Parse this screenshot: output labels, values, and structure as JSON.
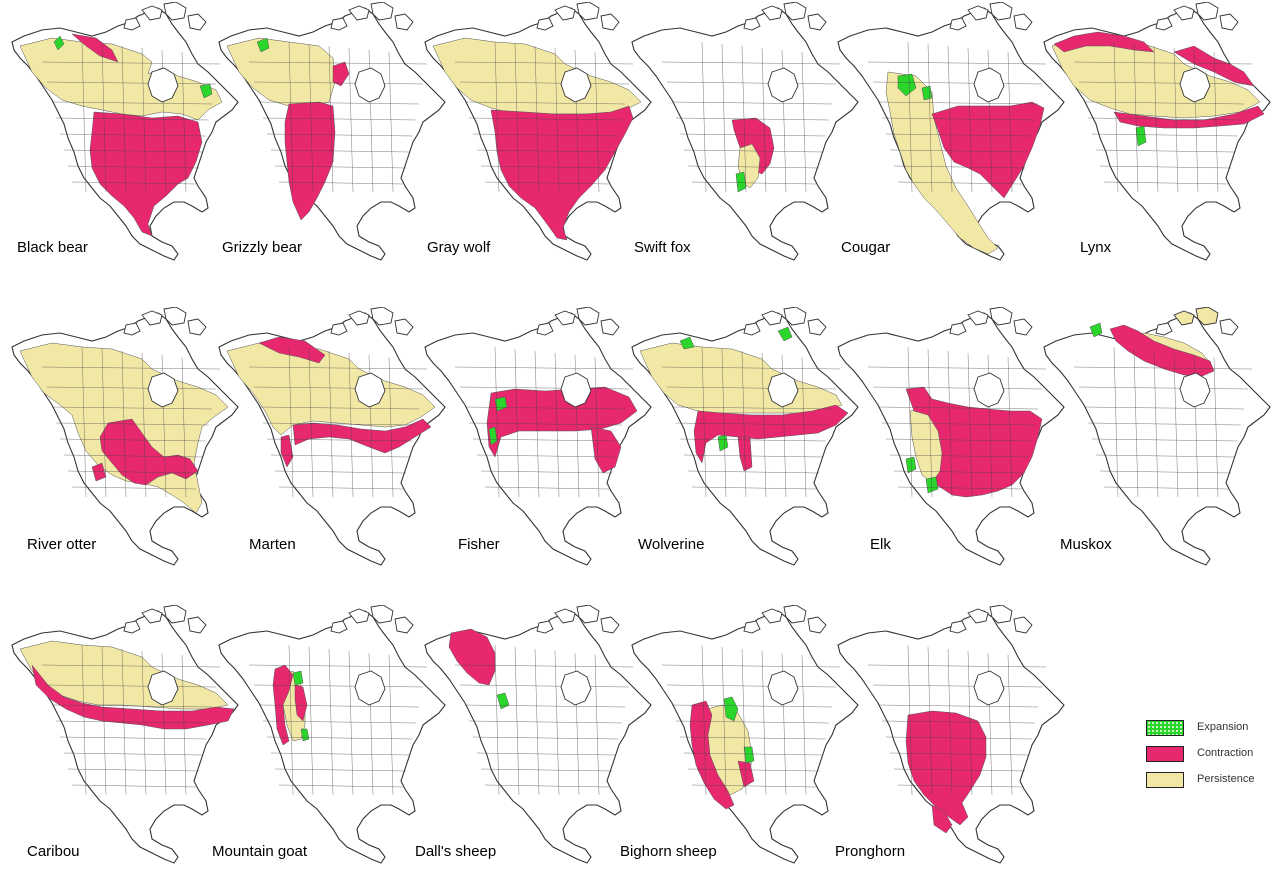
{
  "colors": {
    "expansion": "#2ad62a",
    "contraction": "#e8286e",
    "persistence": "#f2e8a6",
    "outline": "#333333",
    "land": "#ffffff"
  },
  "legend": [
    {
      "key": "expansion",
      "label": "Expansion",
      "color": "#2ad62a"
    },
    {
      "key": "contraction",
      "label": "Contraction",
      "color": "#e8286e"
    },
    {
      "key": "persistence",
      "label": "Persistence",
      "color": "#f2e8a6"
    }
  ],
  "maps": [
    {
      "id": "black-bear",
      "label": "Black bear",
      "pattern": "blackbear"
    },
    {
      "id": "grizzly-bear",
      "label": "Grizzly bear",
      "pattern": "grizzly"
    },
    {
      "id": "gray-wolf",
      "label": "Gray wolf",
      "pattern": "graywolf"
    },
    {
      "id": "swift-fox",
      "label": "Swift fox",
      "pattern": "swiftfox"
    },
    {
      "id": "cougar",
      "label": "Cougar",
      "pattern": "cougar"
    },
    {
      "id": "lynx",
      "label": "Lynx",
      "pattern": "lynx"
    },
    {
      "id": "river-otter",
      "label": "River otter",
      "pattern": "riverotter"
    },
    {
      "id": "marten",
      "label": "Marten",
      "pattern": "marten"
    },
    {
      "id": "fisher",
      "label": "Fisher",
      "pattern": "fisher"
    },
    {
      "id": "wolverine",
      "label": "Wolverine",
      "pattern": "wolverine"
    },
    {
      "id": "elk",
      "label": "Elk",
      "pattern": "elk"
    },
    {
      "id": "muskox",
      "label": "Muskox",
      "pattern": "muskox"
    },
    {
      "id": "caribou",
      "label": "Caribou",
      "pattern": "caribou"
    },
    {
      "id": "mountain-goat",
      "label": "Mountain goat",
      "pattern": "mountaingoat"
    },
    {
      "id": "dalls-sheep",
      "label": "Dall's sheep",
      "pattern": "dallsheep"
    },
    {
      "id": "bighorn-sheep",
      "label": "Bighorn sheep",
      "pattern": "bighorn"
    },
    {
      "id": "pronghorn",
      "label": "Pronghorn",
      "pattern": "pronghorn"
    }
  ]
}
